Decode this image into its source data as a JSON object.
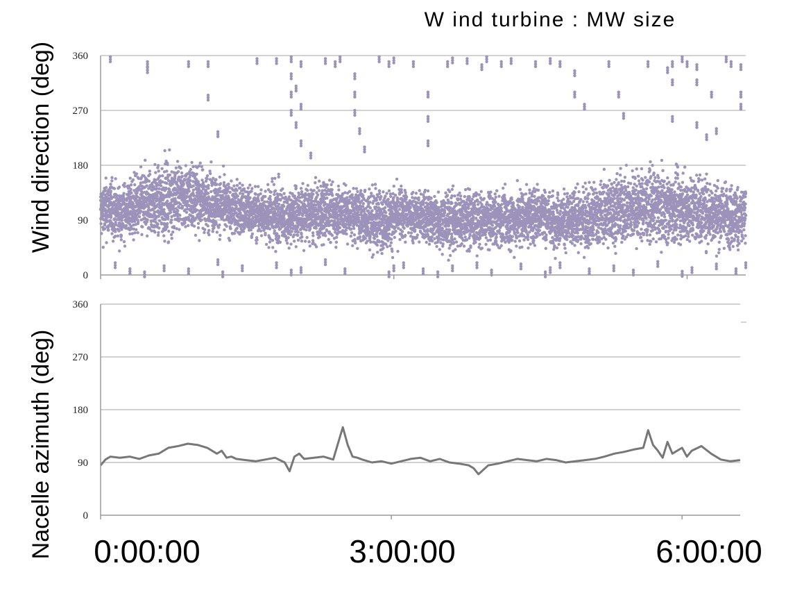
{
  "title": "W ind turbine : MW  size",
  "x_tick_labels": [
    "0:00:00",
    "3:00:00",
    "6:00:00"
  ],
  "colors": {
    "scatter": "#9d93ba",
    "line": "#777777",
    "grid": "#b7b7b7",
    "axis": "#9a9a9a"
  },
  "chart_data": [
    {
      "type": "scatter",
      "name": "wind_direction",
      "ylabel": "Wind direction (deg)",
      "xlabel": "",
      "ylim": [
        0,
        360
      ],
      "yticks": [
        "0",
        "90",
        "180",
        "270",
        "360"
      ],
      "xlim_hours": [
        0,
        6.6
      ],
      "grid": true,
      "x_hours": [
        0.0,
        0.1,
        0.2,
        0.3,
        0.4,
        0.5,
        0.6,
        0.7,
        0.8,
        0.9,
        1.0,
        1.1,
        1.2,
        1.3,
        1.4,
        1.5,
        1.6,
        1.7,
        1.8,
        1.9,
        2.0,
        2.1,
        2.2,
        2.3,
        2.4,
        2.5,
        2.6,
        2.7,
        2.8,
        2.9,
        3.0,
        3.1,
        3.2,
        3.3,
        3.4,
        3.5,
        3.6,
        3.7,
        3.8,
        3.9,
        4.0,
        4.1,
        4.2,
        4.3,
        4.4,
        4.5,
        4.6,
        4.7,
        4.8,
        4.9,
        5.0,
        5.1,
        5.2,
        5.3,
        5.4,
        5.5,
        5.6,
        5.7,
        5.8,
        5.9,
        6.0,
        6.1,
        6.2,
        6.3,
        6.4,
        6.5,
        6.6
      ],
      "y_center": [
        105,
        108,
        100,
        110,
        115,
        120,
        118,
        125,
        128,
        130,
        125,
        120,
        115,
        110,
        108,
        105,
        100,
        102,
        98,
        95,
        100,
        100,
        98,
        105,
        103,
        100,
        98,
        95,
        92,
        90,
        95,
        100,
        98,
        95,
        92,
        90,
        88,
        92,
        90,
        88,
        90,
        92,
        90,
        95,
        98,
        100,
        92,
        90,
        88,
        92,
        95,
        100,
        105,
        108,
        110,
        110,
        112,
        112,
        110,
        108,
        110,
        108,
        105,
        100,
        100,
        95,
        95
      ],
      "y_spread": [
        60,
        60,
        55,
        60,
        65,
        70,
        70,
        75,
        70,
        70,
        65,
        60,
        60,
        55,
        55,
        55,
        50,
        60,
        65,
        55,
        60,
        60,
        60,
        65,
        60,
        55,
        55,
        60,
        65,
        60,
        60,
        55,
        55,
        55,
        55,
        60,
        65,
        60,
        60,
        55,
        55,
        55,
        60,
        60,
        60,
        60,
        55,
        55,
        60,
        60,
        65,
        65,
        70,
        70,
        75,
        70,
        70,
        70,
        70,
        70,
        70,
        70,
        70,
        65,
        65,
        65,
        65
      ],
      "outliers": [
        [
          0.1,
          358
        ],
        [
          0.48,
          350
        ],
        [
          0.48,
          340
        ],
        [
          0.9,
          350
        ],
        [
          1.1,
          350
        ],
        [
          1.1,
          295
        ],
        [
          1.2,
          235
        ],
        [
          1.6,
          355
        ],
        [
          1.8,
          355
        ],
        [
          1.95,
          358
        ],
        [
          1.95,
          330
        ],
        [
          1.95,
          300
        ],
        [
          1.95,
          270
        ],
        [
          2.0,
          310
        ],
        [
          2.0,
          250
        ],
        [
          2.05,
          350
        ],
        [
          2.05,
          280
        ],
        [
          2.05,
          220
        ],
        [
          2.15,
          200
        ],
        [
          2.3,
          355
        ],
        [
          2.4,
          350
        ],
        [
          2.45,
          358
        ],
        [
          2.6,
          330
        ],
        [
          2.6,
          300
        ],
        [
          2.6,
          270
        ],
        [
          2.65,
          240
        ],
        [
          2.7,
          210
        ],
        [
          2.85,
          358
        ],
        [
          2.95,
          350
        ],
        [
          3.0,
          356
        ],
        [
          3.2,
          350
        ],
        [
          3.35,
          300
        ],
        [
          3.35,
          260
        ],
        [
          3.35,
          220
        ],
        [
          3.55,
          350
        ],
        [
          3.6,
          356
        ],
        [
          3.75,
          355
        ],
        [
          3.9,
          345
        ],
        [
          3.95,
          358
        ],
        [
          4.1,
          350
        ],
        [
          4.2,
          355
        ],
        [
          4.45,
          350
        ],
        [
          4.6,
          355
        ],
        [
          4.7,
          350
        ],
        [
          4.85,
          335
        ],
        [
          4.85,
          300
        ],
        [
          4.95,
          280
        ],
        [
          5.2,
          350
        ],
        [
          5.3,
          300
        ],
        [
          5.35,
          265
        ],
        [
          5.6,
          350
        ],
        [
          5.8,
          340
        ],
        [
          5.85,
          350
        ],
        [
          5.85,
          320
        ],
        [
          5.85,
          260
        ],
        [
          5.95,
          358
        ],
        [
          6.0,
          350
        ],
        [
          6.1,
          345
        ],
        [
          6.1,
          320
        ],
        [
          6.1,
          250
        ],
        [
          6.2,
          230
        ],
        [
          6.25,
          300
        ],
        [
          6.3,
          240
        ],
        [
          6.4,
          358
        ],
        [
          6.45,
          350
        ],
        [
          6.55,
          345
        ],
        [
          6.55,
          300
        ],
        [
          6.55,
          280
        ],
        [
          0.15,
          20
        ],
        [
          0.3,
          10
        ],
        [
          0.45,
          5
        ],
        [
          0.65,
          15
        ],
        [
          0.9,
          10
        ],
        [
          1.2,
          25
        ],
        [
          1.25,
          5
        ],
        [
          1.45,
          15
        ],
        [
          1.8,
          20
        ],
        [
          1.95,
          8
        ],
        [
          2.05,
          12
        ],
        [
          2.3,
          25
        ],
        [
          2.5,
          10
        ],
        [
          2.95,
          5
        ],
        [
          3.0,
          15
        ],
        [
          3.1,
          20
        ],
        [
          3.3,
          10
        ],
        [
          3.45,
          5
        ],
        [
          3.6,
          15
        ],
        [
          3.85,
          20
        ],
        [
          4.0,
          8
        ],
        [
          4.3,
          18
        ],
        [
          4.55,
          5
        ],
        [
          4.6,
          12
        ],
        [
          4.7,
          20
        ],
        [
          5.0,
          10
        ],
        [
          5.25,
          15
        ],
        [
          5.45,
          8
        ],
        [
          5.7,
          22
        ],
        [
          5.95,
          6
        ],
        [
          6.05,
          12
        ],
        [
          6.3,
          18
        ],
        [
          6.5,
          10
        ],
        [
          6.6,
          20
        ]
      ]
    },
    {
      "type": "line",
      "name": "nacelle_azimuth",
      "ylabel": "Nacelle azimuth (deg)",
      "xlabel": "",
      "ylim": [
        0,
        360
      ],
      "yticks": [
        "0",
        "90",
        "180",
        "270",
        "360"
      ],
      "xlim_hours": [
        0,
        6.6
      ],
      "grid": true,
      "x_hours": [
        0.0,
        0.05,
        0.1,
        0.2,
        0.3,
        0.4,
        0.5,
        0.6,
        0.7,
        0.8,
        0.9,
        1.0,
        1.1,
        1.2,
        1.25,
        1.3,
        1.35,
        1.4,
        1.5,
        1.6,
        1.7,
        1.8,
        1.9,
        1.95,
        2.0,
        2.05,
        2.1,
        2.2,
        2.3,
        2.4,
        2.5,
        2.55,
        2.6,
        2.65,
        2.7,
        2.8,
        2.9,
        3.0,
        3.1,
        3.2,
        3.3,
        3.4,
        3.5,
        3.6,
        3.7,
        3.8,
        3.85,
        3.9,
        4.0,
        4.1,
        4.2,
        4.3,
        4.4,
        4.5,
        4.6,
        4.7,
        4.8,
        4.9,
        5.0,
        5.1,
        5.2,
        5.3,
        5.4,
        5.5,
        5.6,
        5.65,
        5.7,
        5.75,
        5.8,
        5.85,
        5.9,
        6.0,
        6.05,
        6.1,
        6.2,
        6.3,
        6.4,
        6.5,
        6.6
      ],
      "values": [
        85,
        95,
        100,
        98,
        100,
        96,
        102,
        105,
        115,
        118,
        122,
        120,
        115,
        105,
        110,
        98,
        100,
        96,
        94,
        92,
        95,
        98,
        90,
        75,
        100,
        105,
        96,
        98,
        100,
        95,
        150,
        120,
        100,
        98,
        95,
        90,
        92,
        88,
        92,
        96,
        98,
        92,
        96,
        90,
        88,
        85,
        80,
        70,
        85,
        88,
        92,
        96,
        94,
        92,
        96,
        94,
        90,
        92,
        94,
        96,
        100,
        105,
        108,
        112,
        115,
        145,
        120,
        110,
        98,
        125,
        105,
        115,
        100,
        110,
        118,
        105,
        95,
        92,
        94
      ]
    }
  ]
}
